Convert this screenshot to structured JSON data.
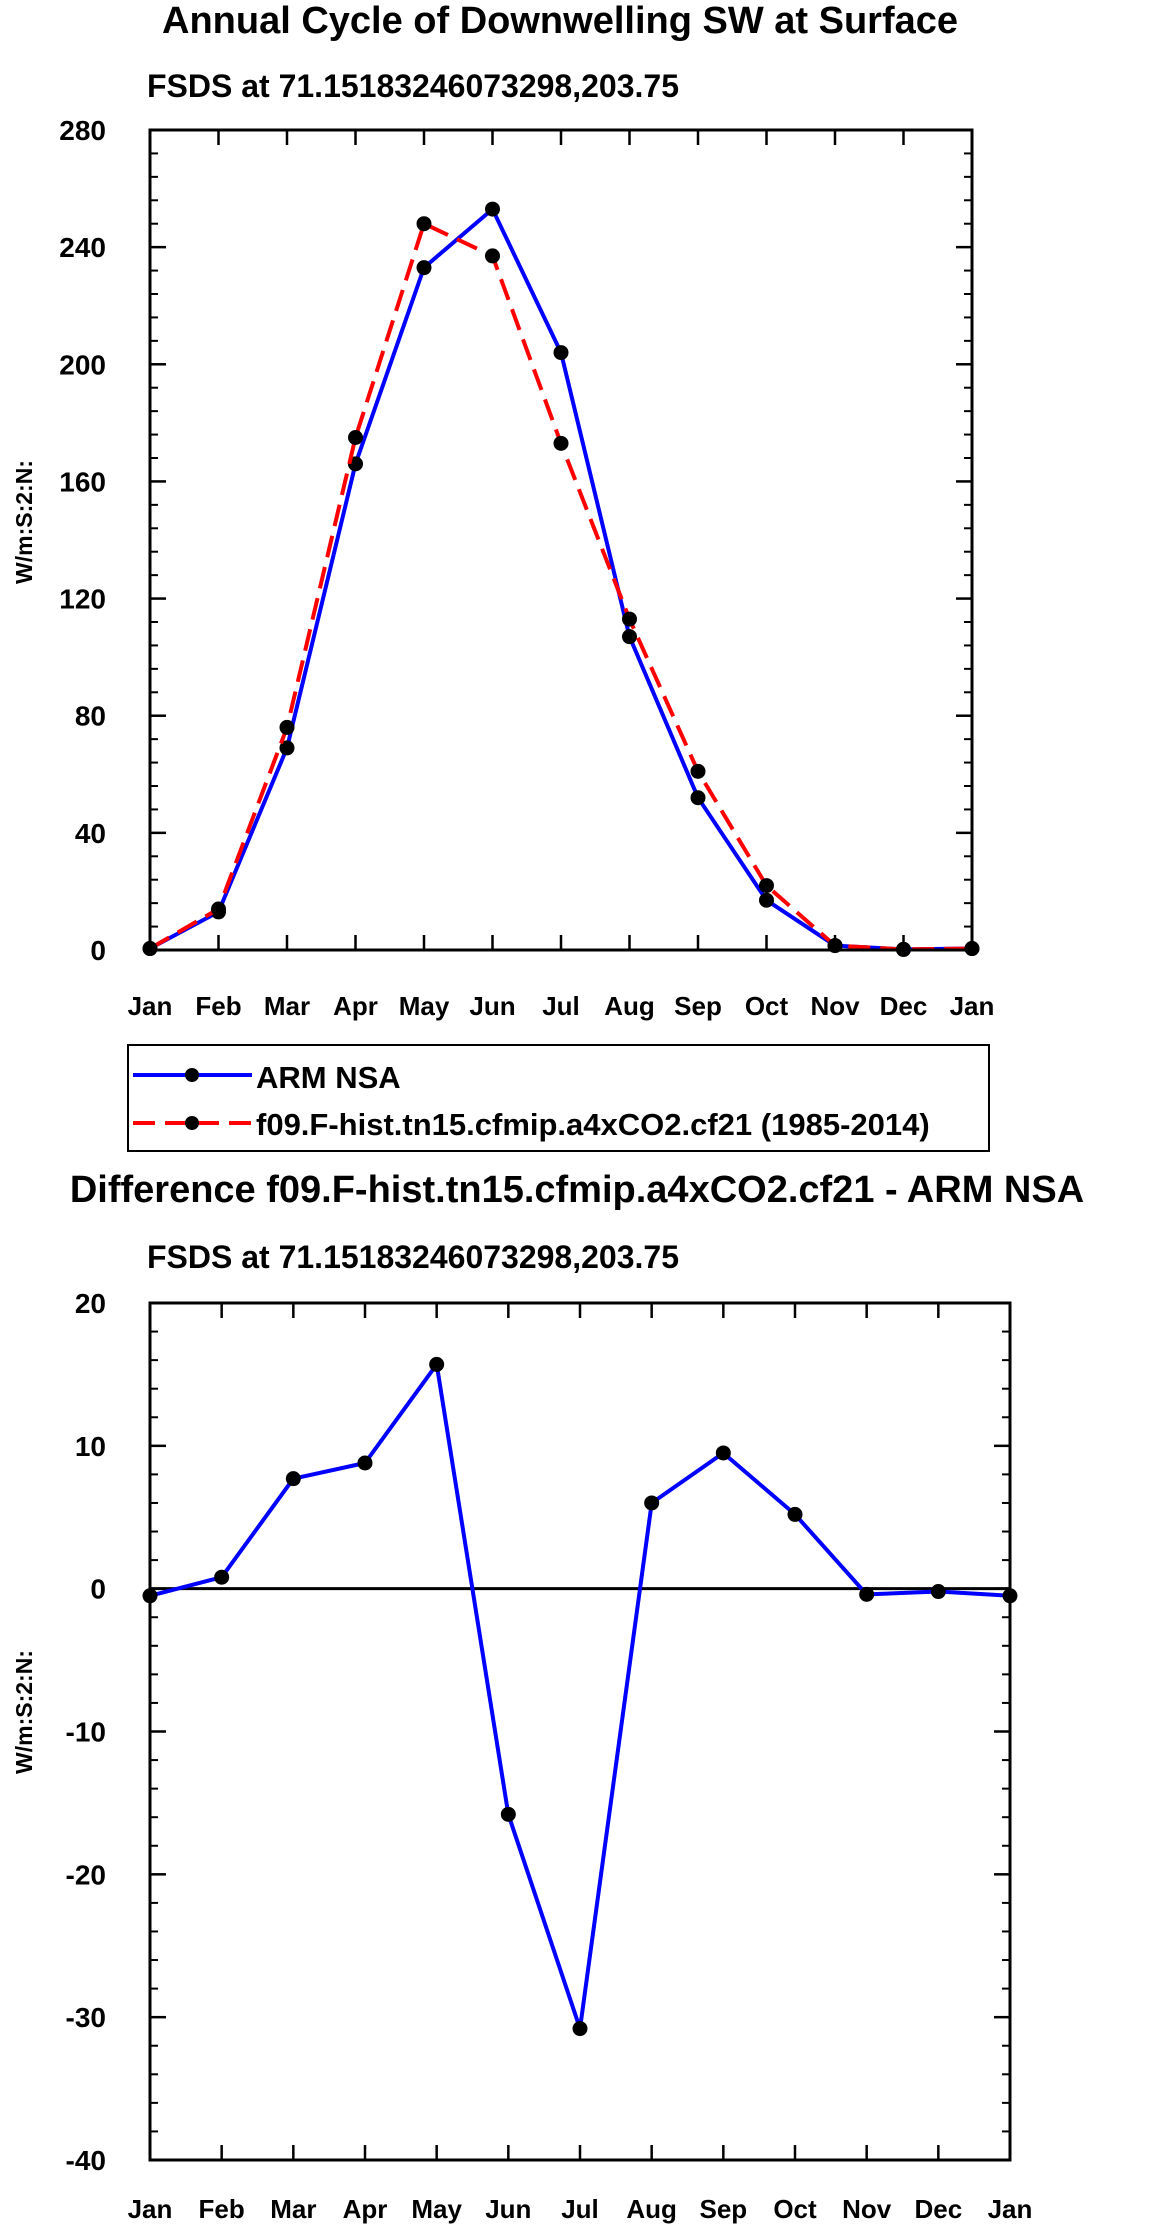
{
  "chart_data": [
    {
      "type": "line",
      "title": "Annual Cycle of Downwelling SW at Surface",
      "subtitle": "FSDS at 71.15183246073298,203.75",
      "xlabel": "",
      "ylabel": "W/m:S:2:N:",
      "categories": [
        "Jan",
        "Feb",
        "Mar",
        "Apr",
        "May",
        "Jun",
        "Jul",
        "Aug",
        "Sep",
        "Oct",
        "Nov",
        "Dec",
        "Jan"
      ],
      "ylim": [
        0,
        280
      ],
      "yticks": [
        0,
        40,
        80,
        120,
        160,
        200,
        240,
        280
      ],
      "series": [
        {
          "name": "ARM NSA",
          "color": "#0000ff",
          "dash": "solid",
          "values": [
            0.5,
            13,
            69,
            166,
            233,
            253,
            204,
            107,
            52,
            17,
            1.5,
            0.2,
            0.5
          ]
        },
        {
          "name": "f09.F-hist.tn15.cfmip.a4xCO2.cf21 (1985-2014)",
          "color": "#ff0000",
          "dash": "dashed",
          "values": [
            0.5,
            14,
            76,
            175,
            248,
            237,
            173,
            113,
            61,
            22,
            1.5,
            0.2,
            0.5
          ]
        }
      ],
      "legend": {
        "location": "below",
        "entries": [
          "ARM NSA",
          "f09.F-hist.tn15.cfmip.a4xCO2.cf21 (1985-2014)"
        ]
      }
    },
    {
      "type": "line",
      "title": "Difference f09.F-hist.tn15.cfmip.a4xCO2.cf21 - ARM NSA",
      "subtitle": "FSDS at 71.15183246073298,203.75",
      "xlabel": "",
      "ylabel": "W/m:S:2:N:",
      "categories": [
        "Jan",
        "Feb",
        "Mar",
        "Apr",
        "May",
        "Jun",
        "Jul",
        "Aug",
        "Sep",
        "Oct",
        "Nov",
        "Dec",
        "Jan"
      ],
      "ylim": [
        -40,
        20
      ],
      "yticks": [
        -40,
        -30,
        -20,
        -10,
        0,
        10,
        20
      ],
      "series": [
        {
          "name": "Difference",
          "color": "#0000ff",
          "dash": "solid",
          "values": [
            -0.5,
            0.8,
            7.7,
            8.8,
            15.7,
            -15.8,
            -30.8,
            6.0,
            9.5,
            5.2,
            -0.4,
            -0.2,
            -0.5
          ]
        }
      ]
    }
  ]
}
